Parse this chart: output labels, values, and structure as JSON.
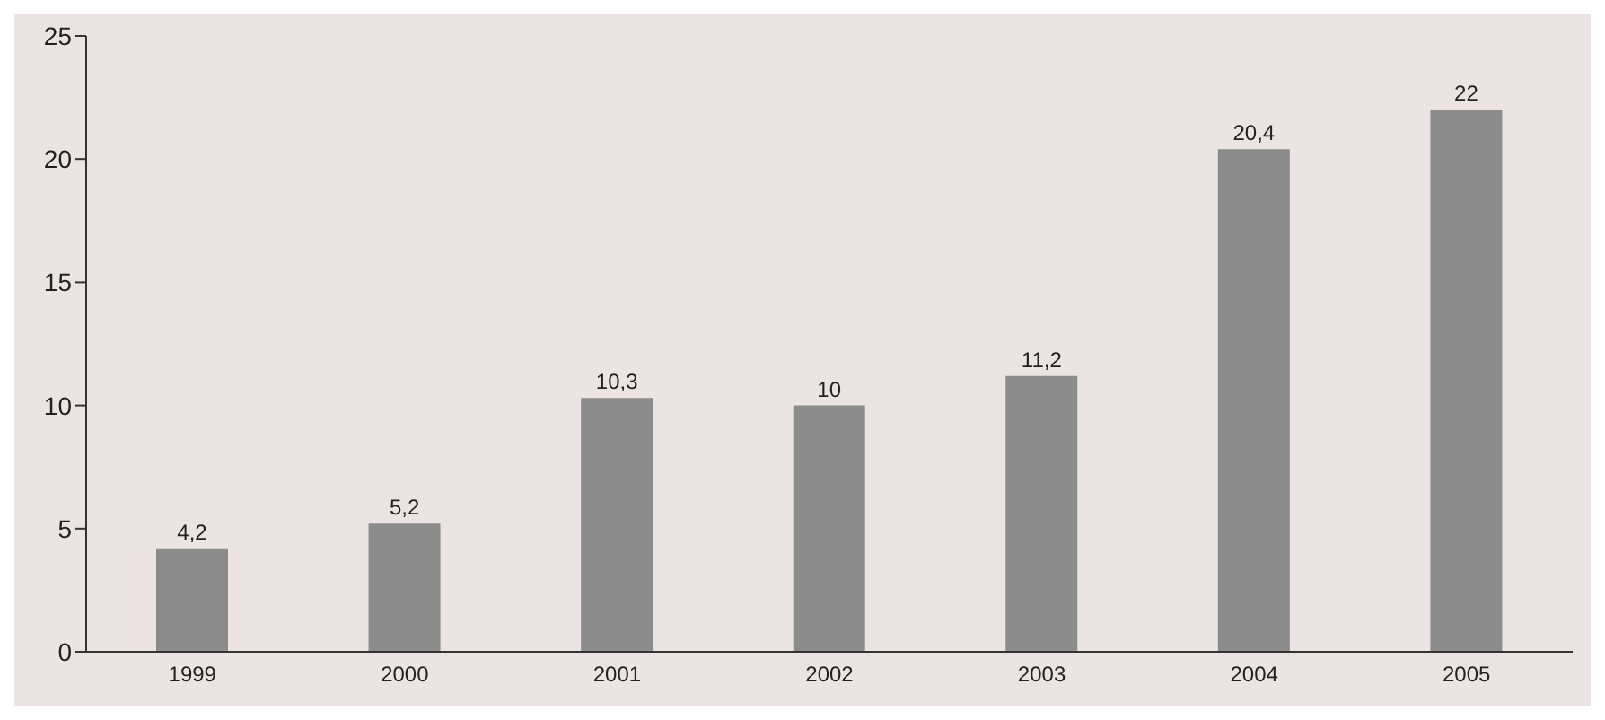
{
  "chart_data": {
    "type": "bar",
    "categories": [
      "1999",
      "2000",
      "2001",
      "2002",
      "2003",
      "2004",
      "2005"
    ],
    "values": [
      4.2,
      5.2,
      10.3,
      10,
      11.2,
      20.4,
      22
    ],
    "value_labels": [
      "4,2",
      "5,2",
      "10,3",
      "10",
      "11,2",
      "20,4",
      "22"
    ],
    "color": "#8c8c8c",
    "ylim": [
      0,
      25
    ],
    "yticks": [
      0,
      5,
      10,
      15,
      20,
      25
    ],
    "grid": false
  }
}
